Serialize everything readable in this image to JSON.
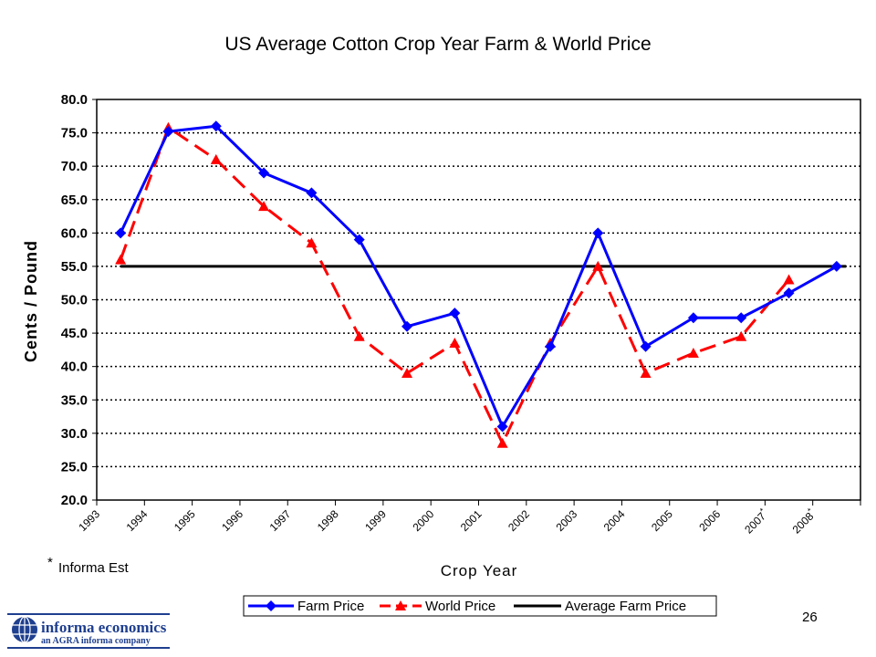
{
  "chart_data": {
    "type": "line",
    "title": "US Average Cotton Crop Year Farm & World Price",
    "ylabel": "Cents / Pound",
    "xlabel": "Crop Year",
    "ylim": [
      20.0,
      80.0
    ],
    "yticks": [
      "20.0",
      "25.0",
      "30.0",
      "35.0",
      "40.0",
      "45.0",
      "50.0",
      "55.0",
      "60.0",
      "65.0",
      "70.0",
      "75.0",
      "80.0"
    ],
    "categories": [
      "1993",
      "1994",
      "1995",
      "1996",
      "1997",
      "1998",
      "1999",
      "2000",
      "2001",
      "2002",
      "2003",
      "2004",
      "2005",
      "2006",
      "2007",
      "2008"
    ],
    "category_marks": [
      "",
      "",
      "",
      "",
      "",
      "",
      "",
      "",
      "",
      "",
      "",
      "",
      "",
      "",
      "*",
      "*"
    ],
    "grid": "horizontal dotted",
    "legend_position": "bottom",
    "series": [
      {
        "name": "Farm Price",
        "color": "#0000ff",
        "style": "solid",
        "marker": "diamond",
        "values": [
          60.0,
          75.2,
          76.0,
          69.0,
          66.0,
          59.0,
          46.0,
          48.0,
          31.0,
          43.0,
          60.0,
          43.0,
          47.3,
          47.3,
          51.0,
          55.0
        ]
      },
      {
        "name": "World Price",
        "color": "#ff0000",
        "style": "dashed",
        "marker": "triangle",
        "values": [
          56.0,
          75.8,
          71.0,
          64.0,
          58.5,
          44.5,
          39.0,
          43.5,
          28.5,
          43.5,
          55.0,
          39.0,
          42.0,
          44.5,
          53.0,
          null
        ]
      },
      {
        "name": "Average Farm Price",
        "color": "#000000",
        "style": "solid",
        "marker": "none",
        "values": [
          55.0,
          55.0,
          55.0,
          55.0,
          55.0,
          55.0,
          55.0,
          55.0,
          55.0,
          55.0,
          55.0,
          55.0,
          55.0,
          55.0,
          55.0,
          55.0
        ]
      }
    ]
  },
  "footnote": {
    "mark": "*",
    "text": "Informa Est"
  },
  "page_number": "26",
  "logo": {
    "name": "informa economics",
    "tagline": "an AGRA informa company",
    "color": "#1f3f8f"
  }
}
